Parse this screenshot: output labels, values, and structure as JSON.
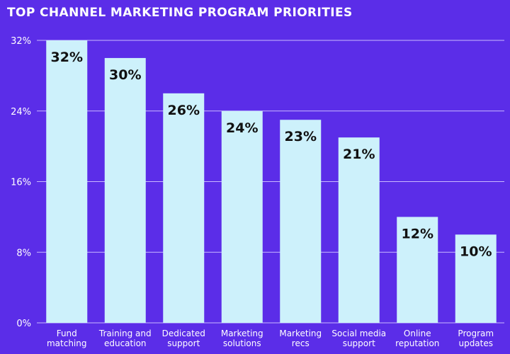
{
  "chart_data": {
    "type": "bar",
    "title": "TOP CHANNEL MARKETING PROGRAM PRIORITIES",
    "categories": [
      [
        "Fund",
        "matching"
      ],
      [
        "Training and",
        "education"
      ],
      [
        "Dedicated",
        "support"
      ],
      [
        "Marketing",
        "solutions"
      ],
      [
        "Marketing",
        "recs"
      ],
      [
        "Social media",
        "support"
      ],
      [
        "Online",
        "reputation"
      ],
      [
        "Program",
        "updates"
      ]
    ],
    "values": [
      32,
      30,
      26,
      24,
      23,
      21,
      12,
      10
    ],
    "data_labels": [
      "32%",
      "30%",
      "26%",
      "24%",
      "23%",
      "21%",
      "12%",
      "10%"
    ],
    "ylim": [
      0,
      32
    ],
    "yticks": [
      0,
      8,
      16,
      24,
      32
    ],
    "ytick_labels": [
      "0%",
      "8%",
      "16%",
      "24%",
      "32%"
    ],
    "grid": true,
    "colors": {
      "background": "#5b2de8",
      "bar": "#cdf1fb",
      "grid": "#c9b8ff",
      "label": "#111111",
      "text": "#ffffff"
    }
  }
}
